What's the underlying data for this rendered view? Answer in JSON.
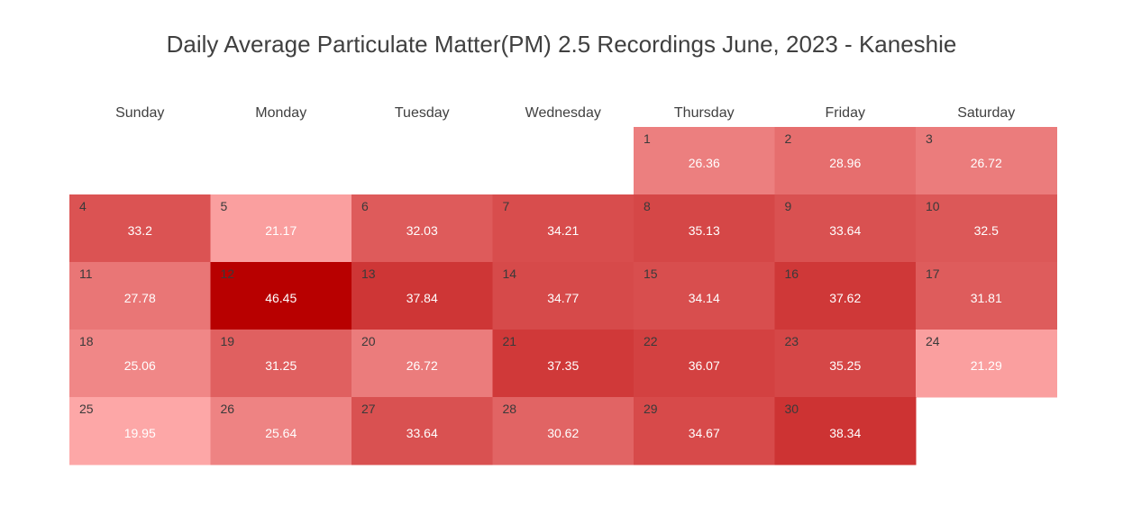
{
  "chart_data": {
    "type": "heatmap",
    "title": "Daily Average Particulate Matter(PM) 2.5 Recordings June, 2023 - Kaneshie",
    "weekdays": [
      "Sunday",
      "Monday",
      "Tuesday",
      "Wednesday",
      "Thursday",
      "Friday",
      "Saturday"
    ],
    "first_weekday_index": 4,
    "color_scale": {
      "low": "#fda7a7",
      "high": "#b80000"
    },
    "days": [
      {
        "day": 1,
        "value": 26.36
      },
      {
        "day": 2,
        "value": 28.96
      },
      {
        "day": 3,
        "value": 26.72
      },
      {
        "day": 4,
        "value": 33.2
      },
      {
        "day": 5,
        "value": 21.17
      },
      {
        "day": 6,
        "value": 32.03
      },
      {
        "day": 7,
        "value": 34.21
      },
      {
        "day": 8,
        "value": 35.13
      },
      {
        "day": 9,
        "value": 33.64
      },
      {
        "day": 10,
        "value": 32.5
      },
      {
        "day": 11,
        "value": 27.78
      },
      {
        "day": 12,
        "value": 46.45
      },
      {
        "day": 13,
        "value": 37.84
      },
      {
        "day": 14,
        "value": 34.77
      },
      {
        "day": 15,
        "value": 34.14
      },
      {
        "day": 16,
        "value": 37.62
      },
      {
        "day": 17,
        "value": 31.81
      },
      {
        "day": 18,
        "value": 25.06
      },
      {
        "day": 19,
        "value": 31.25
      },
      {
        "day": 20,
        "value": 26.72
      },
      {
        "day": 21,
        "value": 37.35
      },
      {
        "day": 22,
        "value": 36.07
      },
      {
        "day": 23,
        "value": 35.25
      },
      {
        "day": 24,
        "value": 21.29
      },
      {
        "day": 25,
        "value": 19.95
      },
      {
        "day": 26,
        "value": 25.64
      },
      {
        "day": 27,
        "value": 33.64
      },
      {
        "day": 28,
        "value": 30.62
      },
      {
        "day": 29,
        "value": 34.67
      },
      {
        "day": 30,
        "value": 38.34
      }
    ]
  }
}
